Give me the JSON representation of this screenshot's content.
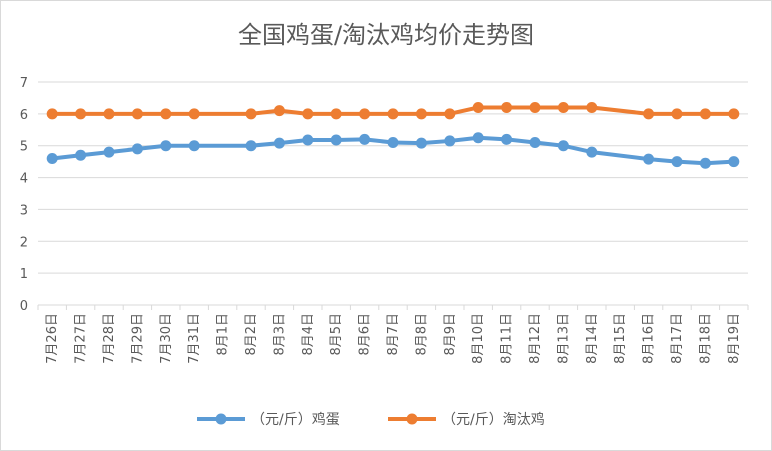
{
  "chart_data": {
    "type": "line",
    "title": "全国鸡蛋/淘汰鸡均价走势图",
    "xlabel": "",
    "ylabel": "",
    "ylim": [
      0,
      7
    ],
    "yticks": [
      "0",
      "1",
      "2",
      "3",
      "4",
      "5",
      "6",
      "7"
    ],
    "grid": true,
    "legend_position": "bottom",
    "categories": [
      "7月26日",
      "7月27日",
      "7月28日",
      "7月29日",
      "7月30日",
      "7月31日",
      "8月1日",
      "8月2日",
      "8月3日",
      "8月4日",
      "8月5日",
      "8月6日",
      "8月7日",
      "8月8日",
      "8月9日",
      "8月10日",
      "8月11日",
      "8月12日",
      "8月13日",
      "8月14日",
      "8月15日",
      "8月16日",
      "8月17日",
      "8月18日",
      "8月19日"
    ],
    "series": [
      {
        "name": "（元/斤）鸡蛋",
        "color": "#5b9bd5",
        "values": [
          4.6,
          4.7,
          4.8,
          4.9,
          5.0,
          5.0,
          null,
          5.0,
          5.08,
          5.18,
          5.18,
          5.2,
          5.1,
          5.08,
          5.15,
          5.25,
          5.2,
          5.1,
          5.0,
          4.8,
          null,
          4.58,
          4.5,
          4.45,
          4.5
        ]
      },
      {
        "name": "（元/斤）淘汰鸡",
        "color": "#ed7d31",
        "values": [
          6.0,
          6.0,
          6.0,
          6.0,
          6.0,
          6.0,
          null,
          6.0,
          6.1,
          6.0,
          6.0,
          6.0,
          6.0,
          6.0,
          6.0,
          6.2,
          6.2,
          6.2,
          6.2,
          6.2,
          null,
          6.0,
          6.0,
          6.0,
          6.0
        ]
      }
    ]
  }
}
